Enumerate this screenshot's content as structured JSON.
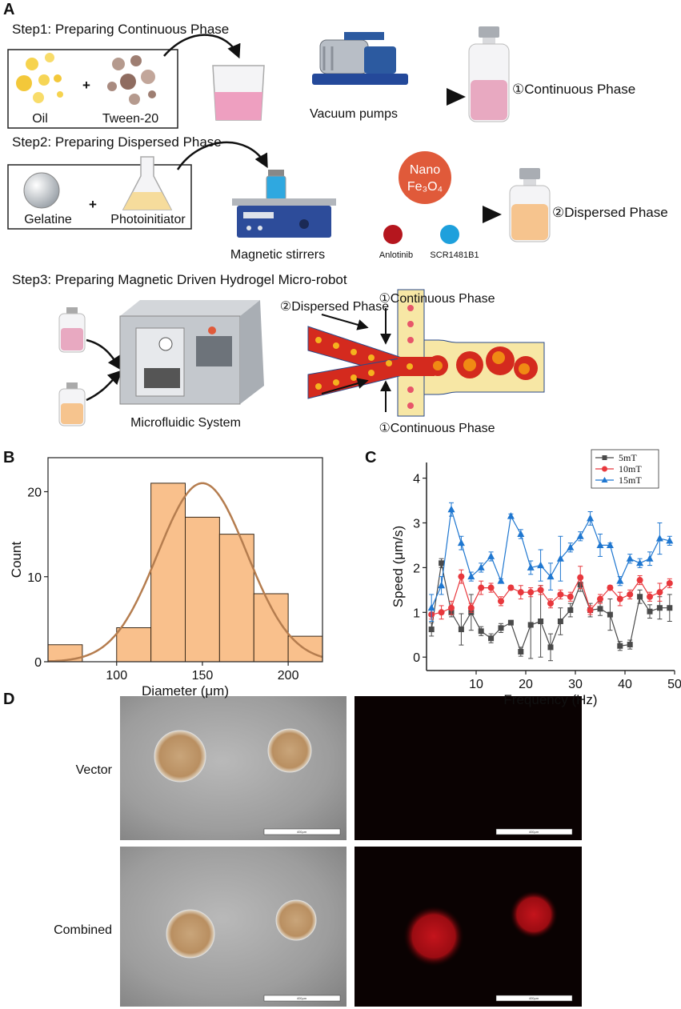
{
  "panel_labels": [
    "A",
    "B",
    "C",
    "D"
  ],
  "diagram": {
    "step1": {
      "title": "Step1: Preparing Continuous Phase",
      "oil": "Oil",
      "plus": "+",
      "tween": "Tween-20",
      "pump": "Vacuum pumps",
      "product": "①Continuous Phase"
    },
    "step2": {
      "title": "Step2: Preparing Dispersed Phase",
      "gelatine": "Gelatine",
      "plus": "+",
      "photoinitiator": "Photoinitiator",
      "stirrer": "Magnetic stirrers",
      "nano": "Nano",
      "fe3o4": "Fe₃O₄",
      "drug1": "Anlotinib",
      "drug2": "SCR1481B1",
      "product": "②Dispersed Phase"
    },
    "step3": {
      "title": "Step3: Preparing Magnetic Driven Hydrogel Micro-robot",
      "system": "Microfluidic System",
      "dispersed": "②Dispersed Phase",
      "continuous_top": "①Continuous Phase",
      "continuous_bottom": "①Continuous Phase"
    }
  },
  "micrographs": {
    "rows": [
      "Vector",
      "Combined"
    ],
    "scale_bar": "400μm"
  },
  "chart_data": [
    {
      "type": "histogram",
      "x_label": "Diameter (μm)",
      "y_label": "Count",
      "bins": [
        60,
        80,
        100,
        120,
        140,
        160,
        180,
        200,
        220
      ],
      "values": [
        2,
        0,
        4,
        21,
        17,
        15,
        8,
        3
      ],
      "color": "#f9c08c",
      "edge_color": "#3a2a1a",
      "fit": {
        "mean": 150,
        "sd": 26,
        "peak": 21,
        "color": "#b57d4f"
      },
      "xlim": [
        60,
        220
      ],
      "xticks": [
        100,
        150,
        200
      ],
      "ylim": [
        0,
        24
      ],
      "yticks": [
        0,
        10,
        20
      ]
    },
    {
      "type": "line",
      "x_label": "Frequency (Hz)",
      "y_label": "Speed (μm/s)",
      "x": [
        1,
        3,
        5,
        7,
        9,
        11,
        13,
        15,
        17,
        19,
        21,
        23,
        25,
        27,
        29,
        31,
        33,
        35,
        37,
        39,
        41,
        43,
        45,
        47,
        49
      ],
      "series": [
        {
          "name": "5mT",
          "color": "#4a4a4a",
          "marker": "square",
          "values": [
            0.62,
            2.1,
            1.0,
            0.62,
            1.0,
            0.58,
            0.42,
            0.65,
            0.77,
            0.12,
            0.72,
            0.8,
            0.22,
            0.8,
            1.05,
            1.62,
            1.05,
            1.08,
            0.95,
            0.25,
            0.28,
            1.35,
            1.02,
            1.1,
            1.1
          ],
          "errors": [
            0.15,
            0.1,
            0.1,
            0.35,
            0.4,
            0.1,
            0.1,
            0.1,
            0.05,
            0.1,
            0.75,
            0.8,
            0.3,
            0.3,
            0.15,
            0.15,
            0.15,
            0.15,
            0.35,
            0.1,
            0.1,
            0.15,
            0.15,
            0.25,
            0.3
          ]
        },
        {
          "name": "10mT",
          "color": "#e8383d",
          "marker": "circle",
          "values": [
            0.95,
            1.0,
            1.1,
            1.8,
            1.1,
            1.55,
            1.55,
            1.25,
            1.55,
            1.45,
            1.45,
            1.5,
            1.2,
            1.4,
            1.35,
            1.78,
            1.05,
            1.3,
            1.55,
            1.3,
            1.4,
            1.72,
            1.35,
            1.45,
            1.65
          ],
          "errors": [
            0.1,
            0.15,
            0.15,
            0.15,
            0.1,
            0.15,
            0.1,
            0.1,
            0.05,
            0.15,
            0.1,
            0.1,
            0.1,
            0.1,
            0.1,
            0.25,
            0.1,
            0.1,
            0.05,
            0.15,
            0.1,
            0.1,
            0.1,
            0.2,
            0.1
          ]
        },
        {
          "name": "15mT",
          "color": "#1f77d0",
          "marker": "triangle",
          "values": [
            1.1,
            1.6,
            3.3,
            2.55,
            1.8,
            2.0,
            2.25,
            1.7,
            3.15,
            2.75,
            2.0,
            2.05,
            1.8,
            2.2,
            2.45,
            2.7,
            3.1,
            2.5,
            2.5,
            1.7,
            2.2,
            2.1,
            2.2,
            2.65,
            2.6
          ],
          "errors": [
            0.3,
            0.2,
            0.15,
            0.15,
            0.1,
            0.1,
            0.1,
            0.05,
            0.05,
            0.1,
            0.15,
            0.35,
            0.3,
            0.5,
            0.1,
            0.1,
            0.15,
            0.25,
            0.05,
            0.1,
            0.1,
            0.1,
            0.15,
            0.35,
            0.1
          ]
        }
      ],
      "legend": "upper right",
      "xlim": [
        0,
        50
      ],
      "xticks": [
        10,
        20,
        30,
        40,
        50
      ],
      "ylim": [
        -0.3,
        4.35
      ],
      "yticks": [
        0,
        1,
        2,
        3,
        4
      ]
    }
  ]
}
